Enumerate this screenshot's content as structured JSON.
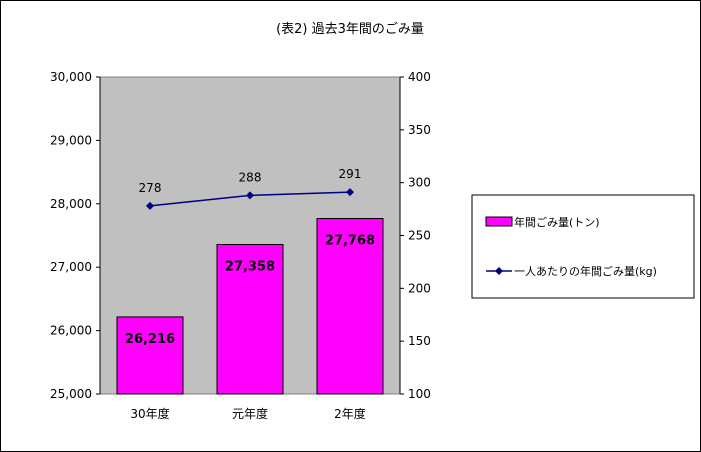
{
  "chart_data": {
    "type": "bar",
    "title": "(表2) 過去3年間のごみ量",
    "categories": [
      "30年度",
      "元年度",
      "2年度"
    ],
    "series": [
      {
        "name": "年間ごみ量(トン)",
        "type": "bar",
        "axis": "left",
        "color": "#FF00FF",
        "values": [
          26216,
          27358,
          27768
        ],
        "labels": [
          "26,216",
          "27,358",
          "27,768"
        ]
      },
      {
        "name": "一人あたりの年間ごみ量(kg)",
        "type": "line",
        "axis": "right",
        "color": "#000080",
        "values": [
          278,
          288,
          291
        ],
        "labels": [
          "278",
          "288",
          "291"
        ]
      }
    ],
    "y_left": {
      "min": 25000,
      "max": 30000,
      "ticks": [
        25000,
        26000,
        27000,
        28000,
        29000,
        30000
      ],
      "tick_labels": [
        "25,000",
        "26,000",
        "27,000",
        "28,000",
        "29,000",
        "30,000"
      ]
    },
    "y_right": {
      "min": 100,
      "max": 400,
      "ticks": [
        100,
        150,
        200,
        250,
        300,
        350,
        400
      ],
      "tick_labels": [
        "100",
        "150",
        "200",
        "250",
        "300",
        "350",
        "400"
      ]
    },
    "plot_background": "#C0C0C0",
    "grid": false,
    "legend_position": "right"
  }
}
